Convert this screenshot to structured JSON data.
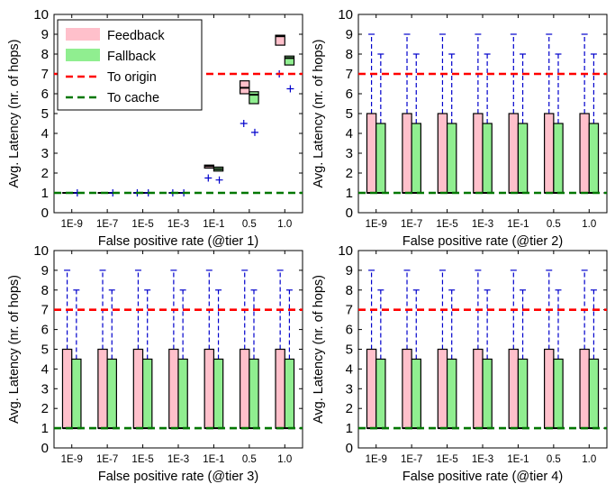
{
  "shared": {
    "ylabel": "Avg. Latency (nr. of hops)",
    "categories": [
      "1E-9",
      "1E-7",
      "1E-5",
      "1E-3",
      "1E-1",
      "0.5",
      "1.0"
    ],
    "ylim": [
      0,
      10
    ],
    "yticks": [
      "0",
      "1",
      "2",
      "3",
      "4",
      "5",
      "6",
      "7",
      "8",
      "9",
      "10"
    ],
    "reference_lines": [
      {
        "name": "To origin",
        "value": 7,
        "color": "#ff0000"
      },
      {
        "name": "To cache",
        "value": 1,
        "color": "#007700"
      }
    ],
    "colors": {
      "feedback": "#ffc0cb",
      "fallback": "#90ee90",
      "whisker": "#0000cc",
      "edge": "#000000"
    },
    "legend": {
      "placement": "top-left",
      "entries": [
        {
          "label": "Feedback",
          "kind": "patch",
          "color": "#ffc0cb"
        },
        {
          "label": "Fallback",
          "kind": "patch",
          "color": "#90ee90"
        },
        {
          "label": "To origin",
          "kind": "dashed",
          "color": "#ff0000"
        },
        {
          "label": "To cache",
          "kind": "dashed",
          "color": "#007700"
        }
      ]
    }
  },
  "chart_data": [
    {
      "type": "box",
      "xlabel": "False positive rate (@tier 1)",
      "legend": true,
      "series": [
        {
          "name": "Feedback",
          "boxes": [
            {
              "low": 1,
              "q1": 1,
              "median": 1,
              "q3": 1,
              "high": 1,
              "fliers": []
            },
            {
              "low": 1,
              "q1": 1,
              "median": 1,
              "q3": 1,
              "high": 1,
              "fliers": []
            },
            {
              "low": 1,
              "q1": 1,
              "median": 1,
              "q3": 1,
              "high": 1,
              "fliers": [
                1
              ]
            },
            {
              "low": 1,
              "q1": 1,
              "median": 1,
              "q3": 1,
              "high": 1,
              "fliers": [
                1
              ]
            },
            {
              "low": 2.25,
              "q1": 2.25,
              "median": 2.35,
              "q3": 2.4,
              "high": 2.4,
              "fliers": [
                1.75
              ]
            },
            {
              "low": 6.0,
              "q1": 6.0,
              "median": 6.3,
              "q3": 6.65,
              "high": 6.65,
              "fliers": [
                4.5
              ]
            },
            {
              "low": 8.45,
              "q1": 8.45,
              "median": 8.9,
              "q3": 8.95,
              "high": 8.95,
              "fliers": [
                7.0
              ]
            }
          ]
        },
        {
          "name": "Fallback",
          "boxes": [
            {
              "low": 1,
              "q1": 1,
              "median": 1,
              "q3": 1,
              "high": 1,
              "fliers": [
                1
              ]
            },
            {
              "low": 1,
              "q1": 1,
              "median": 1,
              "q3": 1,
              "high": 1,
              "fliers": [
                1
              ]
            },
            {
              "low": 1,
              "q1": 1,
              "median": 1,
              "q3": 1,
              "high": 1,
              "fliers": [
                1
              ]
            },
            {
              "low": 1,
              "q1": 1,
              "median": 1,
              "q3": 1,
              "high": 1,
              "fliers": [
                1
              ]
            },
            {
              "low": 2.1,
              "q1": 2.1,
              "median": 2.2,
              "q3": 2.3,
              "high": 2.3,
              "fliers": [
                1.65
              ]
            },
            {
              "low": 5.5,
              "q1": 5.5,
              "median": 5.95,
              "q3": 6.1,
              "high": 6.1,
              "fliers": [
                4.05
              ]
            },
            {
              "low": 7.45,
              "q1": 7.45,
              "median": 7.8,
              "q3": 7.9,
              "high": 7.9,
              "fliers": [
                6.25
              ]
            }
          ]
        }
      ]
    },
    {
      "type": "box",
      "xlabel": "False positive rate (@tier 2)",
      "legend": false,
      "series": [
        {
          "name": "Feedback",
          "boxes": [
            {
              "low": 1,
              "q1": 1,
              "median": 1,
              "q3": 5,
              "high": 9,
              "fliers": []
            },
            {
              "low": 1,
              "q1": 1,
              "median": 1,
              "q3": 5,
              "high": 9,
              "fliers": []
            },
            {
              "low": 1,
              "q1": 1,
              "median": 1,
              "q3": 5,
              "high": 9,
              "fliers": []
            },
            {
              "low": 1,
              "q1": 1,
              "median": 1,
              "q3": 5,
              "high": 9,
              "fliers": []
            },
            {
              "low": 1,
              "q1": 1,
              "median": 1,
              "q3": 5,
              "high": 9,
              "fliers": []
            },
            {
              "low": 1,
              "q1": 1,
              "median": 1,
              "q3": 5,
              "high": 9,
              "fliers": []
            },
            {
              "low": 1,
              "q1": 1,
              "median": 1,
              "q3": 5,
              "high": 9,
              "fliers": []
            }
          ]
        },
        {
          "name": "Fallback",
          "boxes": [
            {
              "low": 1,
              "q1": 1,
              "median": 1,
              "q3": 4.5,
              "high": 8,
              "fliers": []
            },
            {
              "low": 1,
              "q1": 1,
              "median": 1,
              "q3": 4.5,
              "high": 8,
              "fliers": []
            },
            {
              "low": 1,
              "q1": 1,
              "median": 1,
              "q3": 4.5,
              "high": 8,
              "fliers": []
            },
            {
              "low": 1,
              "q1": 1,
              "median": 1,
              "q3": 4.5,
              "high": 8,
              "fliers": []
            },
            {
              "low": 1,
              "q1": 1,
              "median": 1,
              "q3": 4.5,
              "high": 8,
              "fliers": []
            },
            {
              "low": 1,
              "q1": 1,
              "median": 1,
              "q3": 4.5,
              "high": 8,
              "fliers": []
            },
            {
              "low": 1,
              "q1": 1,
              "median": 1,
              "q3": 4.5,
              "high": 8,
              "fliers": []
            }
          ]
        }
      ]
    },
    {
      "type": "box",
      "xlabel": "False positive rate (@tier 3)",
      "legend": false,
      "series": [
        {
          "name": "Feedback",
          "boxes": [
            {
              "low": 1,
              "q1": 1,
              "median": 1,
              "q3": 5,
              "high": 9,
              "fliers": []
            },
            {
              "low": 1,
              "q1": 1,
              "median": 1,
              "q3": 5,
              "high": 9,
              "fliers": []
            },
            {
              "low": 1,
              "q1": 1,
              "median": 1,
              "q3": 5,
              "high": 9,
              "fliers": []
            },
            {
              "low": 1,
              "q1": 1,
              "median": 1,
              "q3": 5,
              "high": 9,
              "fliers": []
            },
            {
              "low": 1,
              "q1": 1,
              "median": 1,
              "q3": 5,
              "high": 9,
              "fliers": []
            },
            {
              "low": 1,
              "q1": 1,
              "median": 1,
              "q3": 5,
              "high": 9,
              "fliers": []
            },
            {
              "low": 1,
              "q1": 1,
              "median": 1,
              "q3": 5,
              "high": 9,
              "fliers": []
            }
          ]
        },
        {
          "name": "Fallback",
          "boxes": [
            {
              "low": 1,
              "q1": 1,
              "median": 1,
              "q3": 4.5,
              "high": 8,
              "fliers": []
            },
            {
              "low": 1,
              "q1": 1,
              "median": 1,
              "q3": 4.5,
              "high": 8,
              "fliers": []
            },
            {
              "low": 1,
              "q1": 1,
              "median": 1,
              "q3": 4.5,
              "high": 8,
              "fliers": []
            },
            {
              "low": 1,
              "q1": 1,
              "median": 1,
              "q3": 4.5,
              "high": 8,
              "fliers": []
            },
            {
              "low": 1,
              "q1": 1,
              "median": 1,
              "q3": 4.5,
              "high": 8,
              "fliers": []
            },
            {
              "low": 1,
              "q1": 1,
              "median": 1,
              "q3": 4.5,
              "high": 8,
              "fliers": []
            },
            {
              "low": 1,
              "q1": 1,
              "median": 1,
              "q3": 4.5,
              "high": 8,
              "fliers": []
            }
          ]
        }
      ]
    },
    {
      "type": "box",
      "xlabel": "False positive rate (@tier 4)",
      "legend": false,
      "series": [
        {
          "name": "Feedback",
          "boxes": [
            {
              "low": 1,
              "q1": 1,
              "median": 1,
              "q3": 5,
              "high": 9,
              "fliers": []
            },
            {
              "low": 1,
              "q1": 1,
              "median": 1,
              "q3": 5,
              "high": 9,
              "fliers": []
            },
            {
              "low": 1,
              "q1": 1,
              "median": 1,
              "q3": 5,
              "high": 9,
              "fliers": []
            },
            {
              "low": 1,
              "q1": 1,
              "median": 1,
              "q3": 5,
              "high": 9,
              "fliers": []
            },
            {
              "low": 1,
              "q1": 1,
              "median": 1,
              "q3": 5,
              "high": 9,
              "fliers": []
            },
            {
              "low": 1,
              "q1": 1,
              "median": 1,
              "q3": 5,
              "high": 9,
              "fliers": []
            },
            {
              "low": 1,
              "q1": 1,
              "median": 1,
              "q3": 5,
              "high": 9,
              "fliers": []
            }
          ]
        },
        {
          "name": "Fallback",
          "boxes": [
            {
              "low": 1,
              "q1": 1,
              "median": 1,
              "q3": 4.5,
              "high": 8,
              "fliers": []
            },
            {
              "low": 1,
              "q1": 1,
              "median": 1,
              "q3": 4.5,
              "high": 8,
              "fliers": []
            },
            {
              "low": 1,
              "q1": 1,
              "median": 1,
              "q3": 4.5,
              "high": 8,
              "fliers": []
            },
            {
              "low": 1,
              "q1": 1,
              "median": 1,
              "q3": 4.5,
              "high": 8,
              "fliers": []
            },
            {
              "low": 1,
              "q1": 1,
              "median": 1,
              "q3": 4.5,
              "high": 8,
              "fliers": []
            },
            {
              "low": 1,
              "q1": 1,
              "median": 1,
              "q3": 4.5,
              "high": 8,
              "fliers": []
            },
            {
              "low": 1,
              "q1": 1,
              "median": 1,
              "q3": 4.5,
              "high": 8,
              "fliers": []
            }
          ]
        }
      ]
    }
  ]
}
